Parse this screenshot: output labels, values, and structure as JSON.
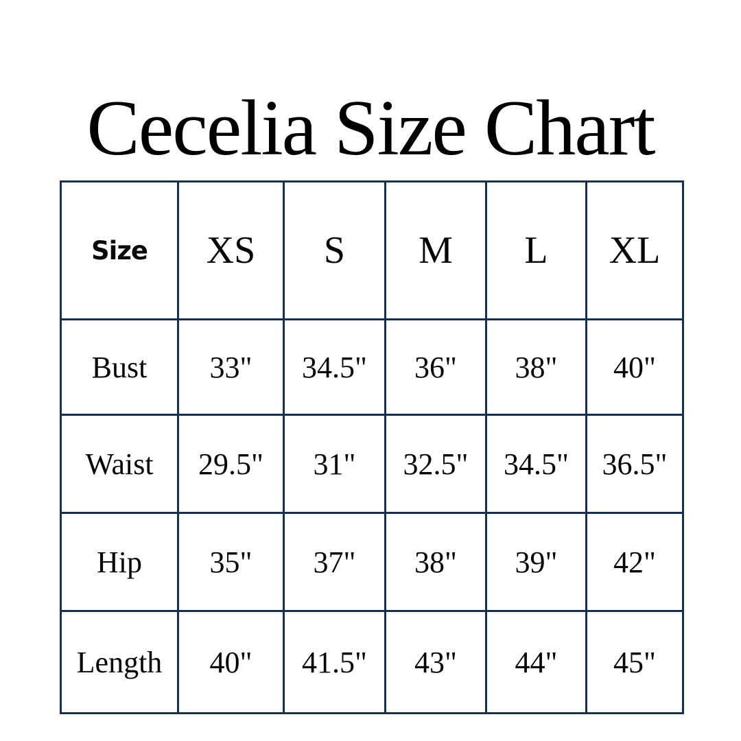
{
  "chart_data": {
    "type": "table",
    "title": "Cecelia Size Chart",
    "corner_label": "Size",
    "columns": [
      "XS",
      "S",
      "M",
      "L",
      "XL"
    ],
    "rows": [
      {
        "label": "Bust",
        "values": [
          "33\"",
          "34.5\"",
          "36\"",
          "38\"",
          "40\""
        ]
      },
      {
        "label": "Waist",
        "values": [
          "29.5\"",
          "31\"",
          "32.5\"",
          "34.5\"",
          "36.5\""
        ]
      },
      {
        "label": "Hip",
        "values": [
          "35\"",
          "37\"",
          "38\"",
          "39\"",
          "42\""
        ]
      },
      {
        "label": "Length",
        "values": [
          "40\"",
          "41.5\"",
          "43\"",
          "44\"",
          "45\""
        ]
      }
    ],
    "layout": {
      "legend": "none",
      "grid": "full-borders"
    },
    "colors": {
      "border": "#16304E",
      "text": "#050505",
      "background": "#FFFFFF"
    }
  }
}
